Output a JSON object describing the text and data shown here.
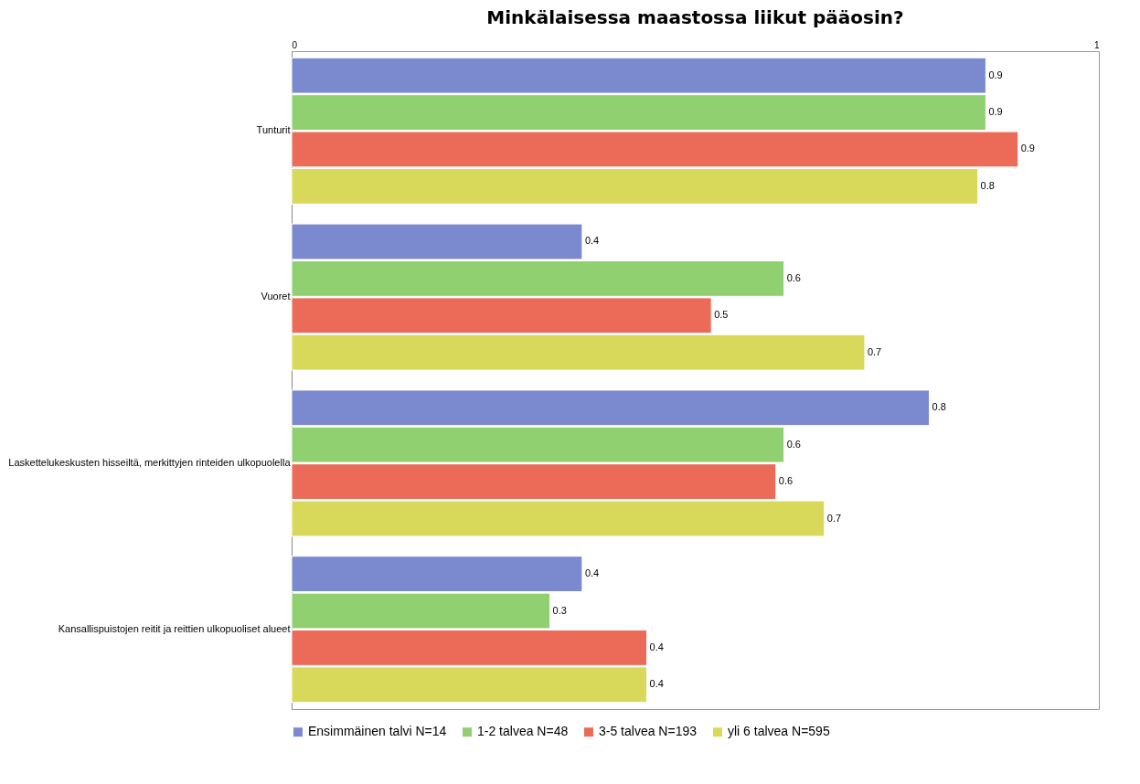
{
  "chart_data": {
    "type": "bar",
    "orientation": "horizontal",
    "title": "Minkälaisessa maastossa liikut pääosin?",
    "categories": [
      "Tunturit",
      "Vuoret",
      "Laskettelukeskusten hisseiltä, merkittyjen rinteiden ulkopuolella",
      "Kansallispuistojen reitit ja reittien ulkopuoliset alueet"
    ],
    "series": [
      {
        "name": "Ensimmäinen talvi N=14",
        "color": "#7b8acf",
        "values": [
          0.86,
          0.36,
          0.79,
          0.36
        ],
        "value_labels": [
          "0.9",
          "0.4",
          "0.8",
          "0.4"
        ]
      },
      {
        "name": "1-2 talvea N=48",
        "color": "#90d070",
        "values": [
          0.86,
          0.61,
          0.61,
          0.32
        ],
        "value_labels": [
          "0.9",
          "0.6",
          "0.6",
          "0.3"
        ]
      },
      {
        "name": "3-5 talvea N=193",
        "color": "#eb6a58",
        "values": [
          0.9,
          0.52,
          0.6,
          0.44
        ],
        "value_labels": [
          "0.9",
          "0.5",
          "0.6",
          "0.4"
        ]
      },
      {
        "name": "yli 6 talvea N=595",
        "color": "#d8d85a",
        "values": [
          0.85,
          0.71,
          0.66,
          0.44
        ],
        "value_labels": [
          "0.8",
          "0.7",
          "0.7",
          "0.4"
        ]
      }
    ],
    "xlim": [
      0,
      1
    ],
    "xticks": [
      0,
      1
    ],
    "grid": false,
    "legend": "bottom"
  }
}
